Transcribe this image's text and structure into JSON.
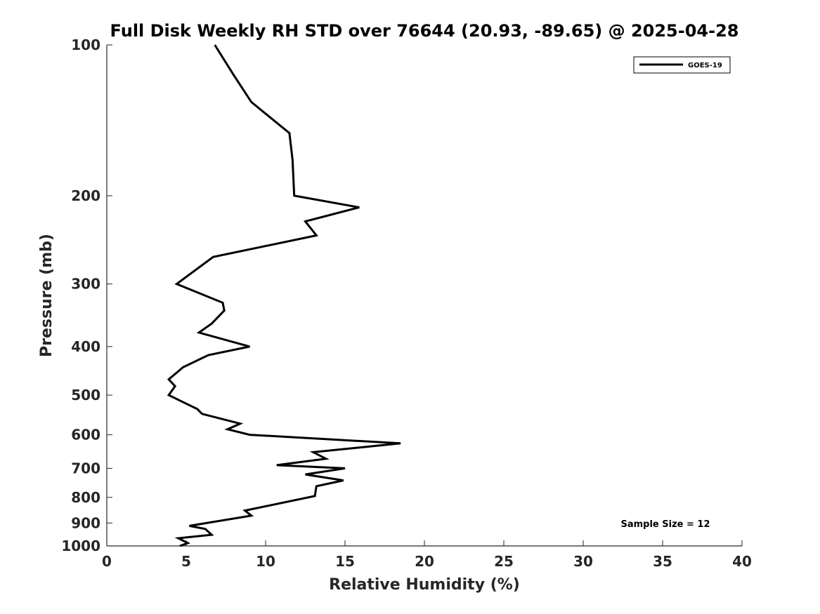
{
  "chart_data": {
    "type": "line",
    "title": "Full Disk Weekly RH STD over 76644 (20.93, -89.65) @ 2025-04-28",
    "xlabel": "Relative Humidity (%)",
    "ylabel": "Pressure (mb)",
    "xlim": [
      0,
      40
    ],
    "ylim": [
      100,
      1000
    ],
    "yscale": "log",
    "y_reversed": true,
    "x_ticks": [
      0,
      5,
      10,
      15,
      20,
      25,
      30,
      35,
      40
    ],
    "x_tick_labels": [
      "0",
      "5",
      "10",
      "15",
      "20",
      "25",
      "30",
      "35",
      "40"
    ],
    "y_ticks": [
      100,
      200,
      300,
      400,
      500,
      600,
      700,
      800,
      900,
      1000
    ],
    "y_tick_labels": [
      "100",
      "200",
      "300",
      "400",
      "500",
      "600",
      "700",
      "800",
      "900",
      "1000"
    ],
    "legend": {
      "entries": [
        "GOES-19"
      ],
      "placement": "top-right"
    },
    "annotation": "Sample Size = 12",
    "series": [
      {
        "name": "GOES-19",
        "color": "#000000",
        "points": [
          [
            6.8,
            100
          ],
          [
            8.0,
            115
          ],
          [
            9.1,
            130
          ],
          [
            11.5,
            150
          ],
          [
            11.7,
            170
          ],
          [
            11.8,
            200
          ],
          [
            15.9,
            211
          ],
          [
            12.5,
            225
          ],
          [
            13.2,
            240
          ],
          [
            6.7,
            265
          ],
          [
            4.4,
            300
          ],
          [
            7.3,
            327
          ],
          [
            7.4,
            339
          ],
          [
            6.6,
            360
          ],
          [
            5.8,
            375
          ],
          [
            9.0,
            400
          ],
          [
            6.4,
            416
          ],
          [
            4.8,
            440
          ],
          [
            3.9,
            465
          ],
          [
            4.3,
            480
          ],
          [
            3.9,
            500
          ],
          [
            5.7,
            533
          ],
          [
            6.0,
            545
          ],
          [
            8.4,
            570
          ],
          [
            7.6,
            585
          ],
          [
            9.0,
            600
          ],
          [
            18.5,
            624
          ],
          [
            13.0,
            650
          ],
          [
            13.8,
            670
          ],
          [
            10.7,
            690
          ],
          [
            15.0,
            700
          ],
          [
            12.5,
            720
          ],
          [
            14.9,
            740
          ],
          [
            13.2,
            760
          ],
          [
            13.1,
            795
          ],
          [
            8.7,
            850
          ],
          [
            9.1,
            870
          ],
          [
            5.2,
            912
          ],
          [
            6.2,
            925
          ],
          [
            6.6,
            950
          ],
          [
            4.5,
            965
          ],
          [
            5.1,
            987
          ],
          [
            4.6,
            1000
          ]
        ]
      }
    ]
  }
}
